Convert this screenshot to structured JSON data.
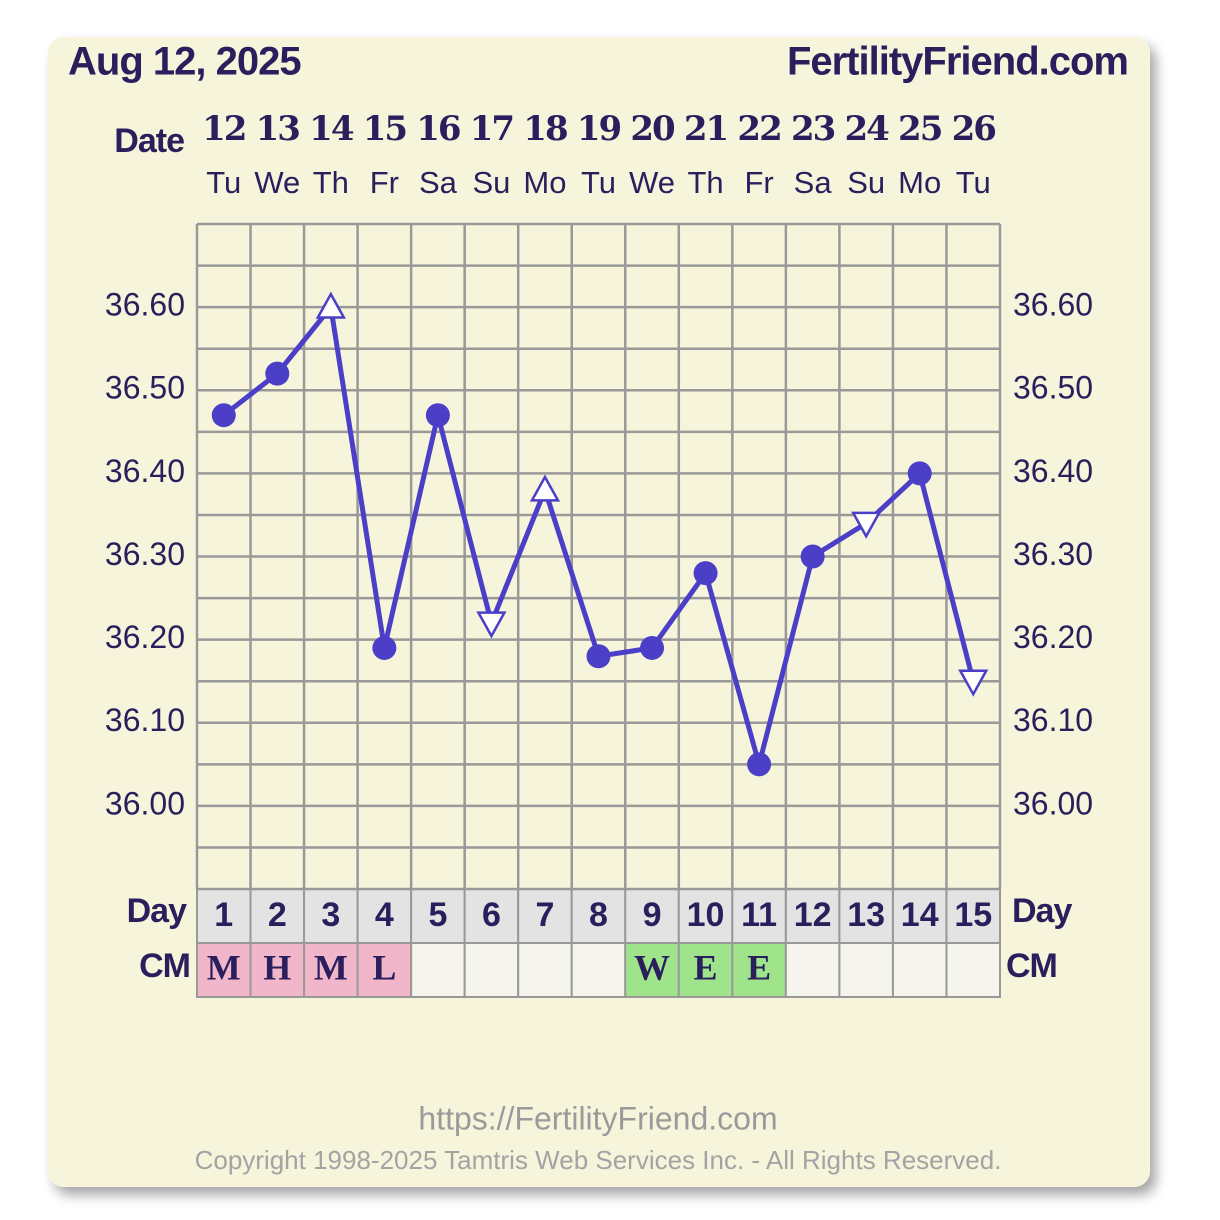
{
  "chart_data": {
    "type": "line",
    "title": "Aug 12, 2025",
    "site": "FertilityFriend.com",
    "date_label": "Date",
    "categories": [
      "12",
      "13",
      "14",
      "15",
      "16",
      "17",
      "18",
      "19",
      "20",
      "21",
      "22",
      "23",
      "24",
      "25",
      "26"
    ],
    "weekdays": [
      "Tu",
      "We",
      "Th",
      "Fr",
      "Sa",
      "Su",
      "Mo",
      "Tu",
      "We",
      "Th",
      "Fr",
      "Sa",
      "Su",
      "Mo",
      "Tu"
    ],
    "values": [
      36.47,
      36.52,
      36.6,
      36.19,
      36.47,
      36.22,
      36.38,
      36.18,
      36.19,
      36.28,
      36.05,
      36.3,
      36.34,
      36.4,
      36.15
    ],
    "markers": [
      "circle",
      "circle",
      "triangle-up",
      "circle",
      "circle",
      "triangle-down",
      "triangle-up",
      "circle",
      "circle",
      "circle",
      "circle",
      "circle",
      "triangle-down",
      "circle",
      "triangle-down"
    ],
    "color": "#4b3fc8",
    "ylim": [
      35.9,
      36.7
    ],
    "yticks": [
      {
        "value": 36.0,
        "label": "36.00"
      },
      {
        "value": 36.1,
        "label": "36.10"
      },
      {
        "value": 36.2,
        "label": "36.20"
      },
      {
        "value": 36.3,
        "label": "36.30"
      },
      {
        "value": 36.4,
        "label": "36.40"
      },
      {
        "value": 36.5,
        "label": "36.50"
      },
      {
        "value": 36.6,
        "label": "36.60"
      }
    ],
    "yminor": [
      35.9,
      35.95,
      36.05,
      36.15,
      36.25,
      36.35,
      36.45,
      36.55,
      36.65,
      36.7
    ],
    "grid": true,
    "day_label": "Day",
    "days": [
      1,
      2,
      3,
      4,
      5,
      6,
      7,
      8,
      9,
      10,
      11,
      12,
      13,
      14,
      15
    ],
    "cm_label": "CM",
    "cm": [
      "M",
      "H",
      "M",
      "L",
      null,
      null,
      null,
      null,
      "W",
      "E",
      "E",
      null,
      null,
      null,
      null
    ],
    "cm_colors": [
      "#f2b6ca",
      "#f2b6ca",
      "#f2b6ca",
      "#f2b6ca",
      null,
      null,
      null,
      null,
      "#9fe38a",
      "#9fe38a",
      "#9fe38a",
      null,
      null,
      null,
      null
    ],
    "footer_url": "https://FertilityFriend.com",
    "copyright": "Copyright 1998-2025 Tamtris Web Services Inc. - All Rights Reserved."
  }
}
